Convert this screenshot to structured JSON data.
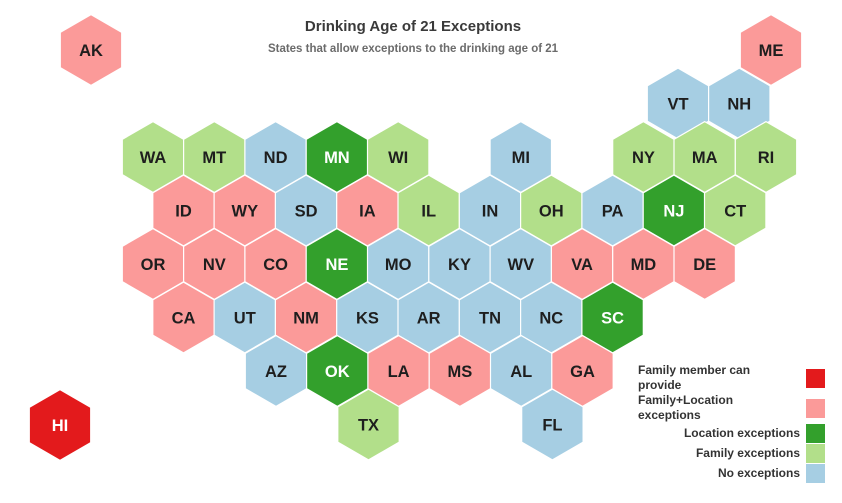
{
  "title": "Drinking Age of 21 Exceptions",
  "subtitle": "States that allow exceptions to the drinking age of 21",
  "colors": {
    "family_member": "#e31a1c",
    "family_location": "#fb9a99",
    "location": "#33a02c",
    "family": "#b2df8a",
    "none": "#a6cee3"
  },
  "legend": [
    {
      "key": "family_member",
      "label": "Family member can provide"
    },
    {
      "key": "family_location",
      "label": "Family+Location exceptions"
    },
    {
      "key": "location",
      "label": "Location exceptions"
    },
    {
      "key": "family",
      "label": "Family exceptions"
    },
    {
      "key": "none",
      "label": "No exceptions"
    }
  ],
  "chart_data": {
    "type": "hex tile map",
    "title": "Drinking Age of 21 Exceptions",
    "subtitle": "States that allow exceptions to the drinking age of 21",
    "states": [
      {
        "code": "AK",
        "category": "family_location",
        "row": 0,
        "col": 0
      },
      {
        "code": "ME",
        "category": "family_location",
        "row": 0,
        "col": 11
      },
      {
        "code": "VT",
        "category": "none",
        "row": 1,
        "col": 9
      },
      {
        "code": "NH",
        "category": "none",
        "row": 1,
        "col": 10
      },
      {
        "code": "WA",
        "category": "family",
        "row": 2,
        "col": 0
      },
      {
        "code": "MT",
        "category": "family",
        "row": 2,
        "col": 1
      },
      {
        "code": "ND",
        "category": "none",
        "row": 2,
        "col": 2
      },
      {
        "code": "MN",
        "category": "location",
        "row": 2,
        "col": 3
      },
      {
        "code": "WI",
        "category": "family",
        "row": 2,
        "col": 4
      },
      {
        "code": "MI",
        "category": "none",
        "row": 2,
        "col": 6
      },
      {
        "code": "NY",
        "category": "family",
        "row": 2,
        "col": 8
      },
      {
        "code": "MA",
        "category": "family",
        "row": 2,
        "col": 9
      },
      {
        "code": "RI",
        "category": "family",
        "row": 2,
        "col": 10
      },
      {
        "code": "ID",
        "category": "family_location",
        "row": 3,
        "col": 0
      },
      {
        "code": "WY",
        "category": "family_location",
        "row": 3,
        "col": 1
      },
      {
        "code": "SD",
        "category": "none",
        "row": 3,
        "col": 2
      },
      {
        "code": "IA",
        "category": "family_location",
        "row": 3,
        "col": 3
      },
      {
        "code": "IL",
        "category": "family",
        "row": 3,
        "col": 4
      },
      {
        "code": "IN",
        "category": "none",
        "row": 3,
        "col": 5
      },
      {
        "code": "OH",
        "category": "family",
        "row": 3,
        "col": 6
      },
      {
        "code": "PA",
        "category": "none",
        "row": 3,
        "col": 7
      },
      {
        "code": "NJ",
        "category": "location",
        "row": 3,
        "col": 8
      },
      {
        "code": "CT",
        "category": "family",
        "row": 3,
        "col": 9
      },
      {
        "code": "OR",
        "category": "family_location",
        "row": 4,
        "col": 0
      },
      {
        "code": "NV",
        "category": "family_location",
        "row": 4,
        "col": 1
      },
      {
        "code": "CO",
        "category": "family_location",
        "row": 4,
        "col": 2
      },
      {
        "code": "NE",
        "category": "location",
        "row": 4,
        "col": 3
      },
      {
        "code": "MO",
        "category": "none",
        "row": 4,
        "col": 4
      },
      {
        "code": "KY",
        "category": "none",
        "row": 4,
        "col": 5
      },
      {
        "code": "WV",
        "category": "none",
        "row": 4,
        "col": 6
      },
      {
        "code": "VA",
        "category": "family_location",
        "row": 4,
        "col": 7
      },
      {
        "code": "MD",
        "category": "family_location",
        "row": 4,
        "col": 8
      },
      {
        "code": "DE",
        "category": "family_location",
        "row": 4,
        "col": 9
      },
      {
        "code": "CA",
        "category": "family_location",
        "row": 5,
        "col": 0
      },
      {
        "code": "UT",
        "category": "none",
        "row": 5,
        "col": 1
      },
      {
        "code": "NM",
        "category": "family_location",
        "row": 5,
        "col": 2
      },
      {
        "code": "KS",
        "category": "none",
        "row": 5,
        "col": 3
      },
      {
        "code": "AR",
        "category": "none",
        "row": 5,
        "col": 4
      },
      {
        "code": "TN",
        "category": "none",
        "row": 5,
        "col": 5
      },
      {
        "code": "NC",
        "category": "none",
        "row": 5,
        "col": 6
      },
      {
        "code": "SC",
        "category": "location",
        "row": 5,
        "col": 7
      },
      {
        "code": "AZ",
        "category": "none",
        "row": 6,
        "col": 0
      },
      {
        "code": "OK",
        "category": "location",
        "row": 6,
        "col": 1
      },
      {
        "code": "LA",
        "category": "family_location",
        "row": 6,
        "col": 2
      },
      {
        "code": "MS",
        "category": "family_location",
        "row": 6,
        "col": 3
      },
      {
        "code": "AL",
        "category": "none",
        "row": 6,
        "col": 4
      },
      {
        "code": "GA",
        "category": "family_location",
        "row": 6,
        "col": 5
      },
      {
        "code": "TX",
        "category": "family",
        "row": 7,
        "col": 0
      },
      {
        "code": "FL",
        "category": "none",
        "row": 7,
        "col": 3
      },
      {
        "code": "HI",
        "category": "family_member",
        "row": 7,
        "col": -4
      }
    ]
  }
}
